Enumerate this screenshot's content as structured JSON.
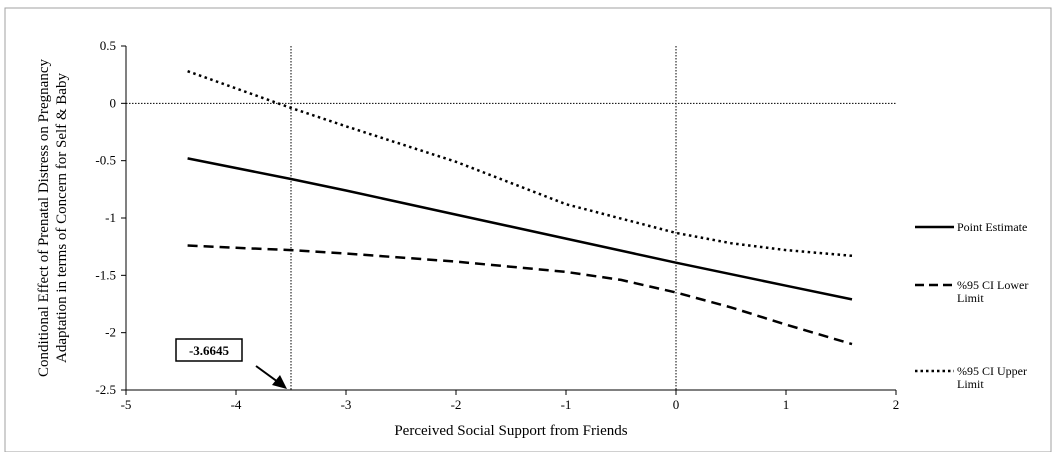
{
  "chart_data": {
    "type": "line",
    "xlabel": "Perceived Social Support from Friends",
    "ylabel_lines": [
      "Conditional Effect of Prenatal Distress on Pregnancy",
      "Adaptation in terms of Concern for Self & Baby"
    ],
    "xlim": [
      -5,
      2
    ],
    "ylim": [
      -2.5,
      0.5
    ],
    "xticks": [
      "-5",
      "-4",
      "-3",
      "-2",
      "-1",
      "0",
      "1",
      "2"
    ],
    "yticks": [
      "0.5",
      "0",
      "-0.5",
      "-1",
      "-1.5",
      "-2",
      "-2.5"
    ],
    "grid": false,
    "legend_position": "right",
    "reference_lines": {
      "vertical": [
        -3.5,
        0
      ],
      "horizontal": [
        0
      ]
    },
    "annotation": {
      "text": "-3.6645",
      "points_to_x": -3.5
    },
    "series": [
      {
        "name": "Point Estimate",
        "style": "solid",
        "x": [
          -4.44,
          -3.5,
          -3,
          -2,
          -1,
          0,
          1,
          1.6
        ],
        "y": [
          -0.48,
          -0.66,
          -0.76,
          -0.97,
          -1.18,
          -1.39,
          -1.59,
          -1.71
        ]
      },
      {
        "name": "%95 CI Lower Limit",
        "legend_lines": [
          "%95 CI Lower",
          "Limit"
        ],
        "style": "dashed",
        "x": [
          -4.44,
          -4,
          -3.5,
          -3,
          -2,
          -1,
          -0.5,
          0,
          0.5,
          1,
          1.6
        ],
        "y": [
          -1.24,
          -1.26,
          -1.28,
          -1.31,
          -1.38,
          -1.47,
          -1.54,
          -1.65,
          -1.78,
          -1.93,
          -2.1
        ]
      },
      {
        "name": "%95 CI Upper Limit",
        "legend_lines": [
          "%95 CI Upper",
          "Limit"
        ],
        "style": "dotted",
        "x": [
          -4.44,
          -4,
          -3.5,
          -3,
          -2,
          -1,
          0,
          0.5,
          1,
          1.6
        ],
        "y": [
          0.28,
          0.13,
          -0.04,
          -0.2,
          -0.51,
          -0.88,
          -1.13,
          -1.22,
          -1.28,
          -1.33
        ]
      }
    ]
  },
  "colors": {
    "line": "#000000",
    "frame": "#a0a0a0",
    "background": "#ffffff"
  }
}
